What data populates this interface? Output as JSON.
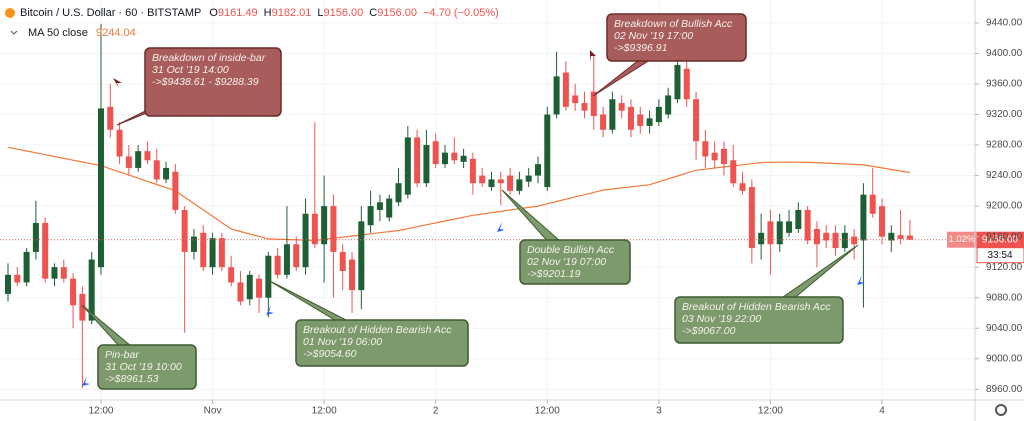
{
  "chart_data": {
    "type": "candlestick",
    "legend": {
      "symbol": "Bitcoin / U.S. Dollar · 60 · BITSTAMP",
      "ohlc": [
        {
          "key": "O",
          "value": "9161.49"
        },
        {
          "key": "H",
          "value": "9182.01"
        },
        {
          "key": "L",
          "value": "9156.00"
        },
        {
          "key": "C",
          "value": "9156.00"
        }
      ],
      "change": "−4.70 (−0.05%)"
    },
    "x": [
      0,
      1,
      2,
      3,
      4,
      5,
      6,
      7,
      8,
      9,
      10,
      11,
      12,
      13,
      14,
      15,
      16,
      17,
      18,
      19,
      20,
      21,
      22,
      23,
      24,
      25,
      26,
      27,
      28,
      29,
      30,
      31,
      32,
      33,
      34,
      35,
      36,
      37,
      38,
      39,
      40,
      41,
      42,
      43,
      44,
      45,
      46,
      47,
      48,
      49,
      50,
      51,
      52,
      53,
      54,
      55,
      56,
      57,
      58,
      59,
      60,
      61,
      62,
      63,
      64,
      65,
      66,
      67,
      68,
      69,
      70,
      71,
      72,
      73,
      74,
      75,
      76,
      77,
      78,
      79,
      80,
      81,
      82,
      83,
      84,
      85,
      86,
      87,
      88,
      89,
      90,
      91,
      92,
      93,
      94,
      95,
      96,
      97
    ],
    "open": [
      9085,
      9110,
      9100,
      9140,
      9178,
      9105,
      9120,
      9105,
      9085,
      9050,
      9120,
      9330,
      9300,
      9265,
      9250,
      9272,
      9260,
      9235,
      9245,
      9195,
      9140,
      9165,
      9120,
      9158,
      9120,
      9100,
      9078,
      9105,
      9080,
      9135,
      9110,
      9150,
      9120,
      9190,
      9150,
      9200,
      9140,
      9130,
      9090,
      9175,
      9195,
      9185,
      9205,
      9215,
      9290,
      9230,
      9285,
      9255,
      9270,
      9258,
      9262,
      9240,
      9225,
      9235,
      9240,
      9220,
      9232,
      9240,
      9225,
      9320,
      9375,
      9345,
      9335,
      9350,
      9320,
      9300,
      9335,
      9330,
      9320,
      9305,
      9310,
      9320,
      9340,
      9380,
      9340,
      9285,
      9270,
      9275,
      9260,
      9230,
      9225,
      9150,
      9180,
      9150,
      9165,
      9170,
      9195,
      9170,
      9165,
      9165,
      9145,
      9160,
      9155,
      9215,
      9200,
      9155,
      9162,
      9161.49
    ],
    "high": [
      9125,
      9120,
      9145,
      9207,
      9185,
      9125,
      9130,
      9112,
      9095,
      9140,
      9438.61,
      9360,
      9310,
      9280,
      9280,
      9285,
      9275,
      9258,
      9255,
      9200,
      9170,
      9175,
      9165,
      9165,
      9135,
      9115,
      9115,
      9110,
      9140,
      9145,
      9200,
      9160,
      9210,
      9310,
      9240,
      9215,
      9150,
      9140,
      9200,
      9220,
      9215,
      9215,
      9250,
      9305,
      9300,
      9300,
      9295,
      9280,
      9290,
      9275,
      9270,
      9250,
      9245,
      9245,
      9250,
      9245,
      9250,
      9265,
      9330,
      9402,
      9390,
      9360,
      9350,
      9396.91,
      9330,
      9350,
      9345,
      9340,
      9330,
      9325,
      9340,
      9355,
      9392,
      9390,
      9350,
      9300,
      9285,
      9285,
      9280,
      9245,
      9235,
      9190,
      9195,
      9190,
      9195,
      9205,
      9200,
      9180,
      9175,
      9175,
      9175,
      9170,
      9230,
      9250,
      9210,
      9175,
      9195,
      9182.01
    ],
    "low": [
      9075,
      9095,
      9095,
      9130,
      9100,
      9095,
      9100,
      9040,
      8961.53,
      9045,
      9110,
      9290,
      9255,
      9240,
      9245,
      9255,
      9230,
      9230,
      9190,
      9034,
      9130,
      9115,
      9110,
      9115,
      9095,
      9070,
      9070,
      9060,
      9054.6,
      9105,
      9105,
      9115,
      9110,
      9145,
      9100,
      9080,
      9090,
      9060,
      9065,
      9165,
      9180,
      9180,
      9200,
      9210,
      9225,
      9225,
      9250,
      9250,
      9255,
      9250,
      9215,
      9225,
      9220,
      9201.19,
      9215,
      9215,
      9225,
      9230,
      9220,
      9315,
      9325,
      9325,
      9315,
      9300,
      9290,
      9295,
      9315,
      9290,
      9295,
      9295,
      9305,
      9315,
      9335,
      9330,
      9260,
      9250,
      9250,
      9240,
      9225,
      9215,
      9125,
      9130,
      9110,
      9140,
      9160,
      9165,
      9150,
      9120,
      9145,
      9135,
      9140,
      9130,
      9067,
      9185,
      9150,
      9140,
      9150,
      9156
    ],
    "close": [
      9110,
      9100,
      9140,
      9178,
      9105,
      9120,
      9105,
      9070,
      9050,
      9130,
      9328,
      9300,
      9265,
      9250,
      9272,
      9260,
      9235,
      9250,
      9195,
      9140,
      9160,
      9120,
      9158,
      9120,
      9100,
      9075,
      9110,
      9080,
      9135,
      9110,
      9150,
      9120,
      9190,
      9150,
      9200,
      9140,
      9115,
      9090,
      9180,
      9200,
      9205,
      9210,
      9230,
      9290,
      9230,
      9280,
      9255,
      9270,
      9260,
      9266,
      9230,
      9230,
      9235,
      9230,
      9220,
      9235,
      9240,
      9255,
      9320,
      9370,
      9330,
      9335,
      9325,
      9318,
      9300,
      9340,
      9325,
      9300,
      9305,
      9315,
      9330,
      9345,
      9385,
      9340,
      9285,
      9265,
      9260,
      9255,
      9230,
      9220,
      9145,
      9165,
      9150,
      9180,
      9180,
      9195,
      9155,
      9150,
      9155,
      9145,
      9165,
      9150,
      9215,
      9190,
      9160,
      9165,
      9157,
      9156
    ],
    "up_color": "#1f5f34",
    "down_color": "#ef5350",
    "ma": {
      "name": "MA 50 close",
      "color": "#f07a3a",
      "values": [
        9277,
        9274.6,
        9272.2,
        9269.8,
        9267.4,
        9265,
        9262.6,
        9260.2,
        9257.8,
        9255.4,
        9253,
        9248.9,
        9244.8,
        9240.6,
        9236.5,
        9232.4,
        9228.3,
        9224.1,
        9220,
        9211.7,
        9203.3,
        9195,
        9186.7,
        9178.3,
        9170,
        9166.8,
        9163.5,
        9160.3,
        9157,
        9156.6,
        9156.2,
        9155.8,
        9155.4,
        9155,
        9156.4,
        9157.9,
        9159.3,
        9160.8,
        9162.2,
        9163.7,
        9165.1,
        9166.6,
        9168,
        9170.5,
        9173,
        9175.5,
        9178,
        9180.5,
        9183,
        9185.5,
        9188,
        9189.7,
        9191.4,
        9193.1,
        9194.9,
        9196.6,
        9198.3,
        9200,
        9203,
        9206,
        9209,
        9212,
        9215,
        9218,
        9221,
        9222.4,
        9223.8,
        9225.2,
        9226.6,
        9228,
        9231.8,
        9235.6,
        9239.4,
        9243.2,
        9247,
        9248.4,
        9249.9,
        9251.3,
        9252.7,
        9254.1,
        9255.6,
        9257,
        9257.3,
        9257.5,
        9257.6,
        9257.5,
        9257.3,
        9257,
        9256.4,
        9255.8,
        9255.2,
        9254.6,
        9254,
        9252,
        9250,
        9248,
        9246,
        9244.04
      ]
    },
    "xlim": [
      -0.86,
      104
    ],
    "xticks": [
      {
        "value": 10,
        "label": "12:00"
      },
      {
        "value": 22,
        "label": "Nov"
      },
      {
        "value": 34,
        "label": "12:00"
      },
      {
        "value": 46,
        "label": "2"
      },
      {
        "value": 58,
        "label": "12:00"
      },
      {
        "value": 70,
        "label": "3"
      },
      {
        "value": 82,
        "label": "12:00"
      },
      {
        "value": 94,
        "label": "4"
      }
    ],
    "ylim": [
      8946,
      9470
    ],
    "yticks": [
      {
        "value": 8960,
        "label": "8960.00"
      },
      {
        "value": 9000,
        "label": "9000.00"
      },
      {
        "value": 9040,
        "label": "9040.00"
      },
      {
        "value": 9080,
        "label": "9080.00"
      },
      {
        "value": 9120,
        "label": "9120.00"
      },
      {
        "value": 9160,
        "label": "9160.00"
      },
      {
        "value": 9200,
        "label": "9200.00"
      },
      {
        "value": 9240,
        "label": "9240.00"
      },
      {
        "value": 9280,
        "label": "9280.00"
      },
      {
        "value": 9320,
        "label": "9320.00"
      },
      {
        "value": 9360,
        "label": "9360.00"
      },
      {
        "value": 9400,
        "label": "9400.00"
      },
      {
        "value": 9440,
        "label": "9440.00"
      }
    ],
    "grid": true,
    "price_line": {
      "value": 9156,
      "label": "9156.00",
      "change": "1.02%",
      "countdown": "33:54"
    },
    "annotations": [
      {
        "lines": [
          "Breakdown of inside-bar",
          "31 Oct '19 14:00",
          "->$9438.61 - $9288.39"
        ],
        "color": "#a85c5c"
      },
      {
        "lines": [
          "Breakdown of Bullish Acc",
          "02 Nov '19 17:00",
          "->$9396.91"
        ],
        "color": "#a85c5c"
      },
      {
        "lines": [
          "Pin-bar",
          "31 Oct '19 10:00",
          "->$8961.53"
        ],
        "color": "#7d9a6d"
      },
      {
        "lines": [
          "Breakout of Hidden Bearish Acc",
          "01 Nov '19 06:00",
          "->$9054.60"
        ],
        "color": "#7d9a6d"
      },
      {
        "lines": [
          "Double Bullish Acc",
          "02 Nov '19 07:00",
          "->$9201.19"
        ],
        "color": "#7d9a6d"
      },
      {
        "lines": [
          "Breakout of Hidden Bearish Acc",
          "03 Nov '19 22:00",
          "->$9067.00"
        ],
        "color": "#7d9a6d"
      }
    ]
  }
}
